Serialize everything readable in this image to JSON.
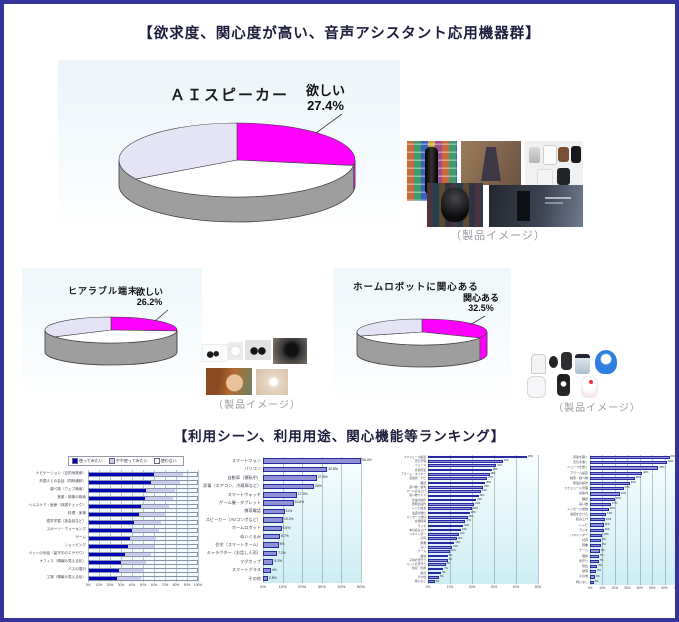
{
  "frame": {
    "border_color": "#333399"
  },
  "section1_title": "【欲求度、関心度が高い、音声アシスタント応用機器群】",
  "section2_title": "【利用シーン、利用用途、関心機能等ランキング】",
  "captions": {
    "speakers": "（製品イメージ）",
    "hearables": "（製品イメージ）",
    "robots": "（製品イメージ）"
  },
  "chart_data": [
    {
      "id": "ai-speaker-pie",
      "type": "pie",
      "title": "ＡＩスピーカー",
      "annotation": {
        "line1": "欲しい",
        "line2": "27.4%"
      },
      "slices": [
        {
          "label": "欲しい",
          "value": 27.4,
          "color": "#ff00ff",
          "side": true
        },
        {
          "label": "",
          "value": 39.0,
          "color": "#ffffff"
        },
        {
          "label": "",
          "value": 33.6,
          "color": "#e4e4f6"
        }
      ]
    },
    {
      "id": "hearable-pie",
      "type": "pie",
      "title": "ヒアラブル端末",
      "annotation": {
        "line1": "欲しい",
        "line2": "26.2%"
      },
      "slices": [
        {
          "label": "欲しい",
          "value": 26.2,
          "color": "#ff00ff",
          "side": true
        },
        {
          "label": "",
          "value": 40.0,
          "color": "#ffffff"
        },
        {
          "label": "",
          "value": 33.8,
          "color": "#e4e4f6"
        }
      ]
    },
    {
      "id": "home-robot-pie",
      "type": "pie",
      "title": "ホームロボットに関心ある",
      "annotation": {
        "line1": "関心ある",
        "line2": "32.5%"
      },
      "slices": [
        {
          "label": "関心ある",
          "value": 32.5,
          "color": "#ff00ff",
          "side": true
        },
        {
          "label": "",
          "value": 37.5,
          "color": "#ffffff"
        },
        {
          "label": "",
          "value": 30.0,
          "color": "#e4e4f6"
        }
      ]
    },
    {
      "id": "usage-scene-ranking",
      "type": "bar",
      "orientation": "horizontal",
      "stacked": true,
      "legend": [
        "使ってみたい",
        "やや使ってみたい",
        "使わない"
      ],
      "legend_colors": [
        "#0202b8",
        "#ccccf0",
        "#ffffff"
      ],
      "xlim": [
        0,
        100
      ],
      "x_ticks": [
        "0%",
        "10%",
        "20%",
        "30%",
        "40%",
        "50%",
        "60%",
        "70%",
        "80%",
        "90%",
        "100%"
      ],
      "categories": [
        "ナビゲーション（目的地検索）",
        "外国人との会話（同時通訳）",
        "調べ物（ウェブ検索）",
        "音楽・映像の検索",
        "ヘルスケア・医療（体調チェック）",
        "料理・家事",
        "語学学習（英会話など）",
        "スポーツ・ウォーキング",
        "ゲーム",
        "ショッピング",
        "ペットの世話（留守中のエサやり）",
        "オフィス（情報の見える化）",
        "バスの運行",
        "工場（情報の見える化）"
      ],
      "series": [
        {
          "name": "使ってみたい",
          "values": [
            60,
            57,
            53,
            52,
            48,
            46,
            42,
            40,
            38,
            36,
            33,
            30,
            28,
            26
          ]
        },
        {
          "name": "やや使ってみたい",
          "values": [
            27,
            27,
            27,
            26,
            26,
            25,
            25,
            25,
            24,
            24,
            24,
            23,
            23,
            22
          ]
        },
        {
          "name": "使わない",
          "values": [
            13,
            16,
            20,
            22,
            26,
            29,
            33,
            35,
            38,
            40,
            43,
            47,
            49,
            52
          ]
        }
      ]
    },
    {
      "id": "device-usage-ranking",
      "type": "bar",
      "orientation": "horizontal",
      "bar_color": "#9191d6",
      "bar_border": "#2929a3",
      "xlim": [
        0,
        50
      ],
      "x_ticks": [
        "0%",
        "10%",
        "20%",
        "30%",
        "40%",
        "50%"
      ],
      "categories": [
        "スマートフォン",
        "パソコン",
        "自動車（運転中）",
        "家電（エアコン、冷蔵庫など）",
        "スマートウォッチ",
        "ゲーム機・タブレット",
        "携帯電話",
        "スピーカー（AVコンポなど）",
        "ホームロボット",
        "ぬいぐるみ",
        "住宅（スマートホーム）",
        "キャラクター（お話し人形）",
        "マグカップ",
        "スマートグラス",
        "その他"
      ],
      "values": [
        50.4,
        32.8,
        27.5,
        26.0,
        17.3,
        15.6,
        11.0,
        10.2,
        9.5,
        8.7,
        8.0,
        7.2,
        5.3,
        4.0,
        2.5
      ]
    },
    {
      "id": "function-interest-ranking",
      "type": "bar",
      "orientation": "horizontal",
      "bar_color": "#9191d6",
      "bar_border": "#2929a3",
      "xlim": [
        0,
        50
      ],
      "x_ticks": [
        "0%",
        "10%",
        "20%",
        "30%",
        "40%",
        "50%"
      ],
      "categories": [
        "スケジュール確認",
        "天気予報",
        "ニュース",
        "音楽再生",
        "アラーム・タイマー",
        "道案内・ナビ",
        "翻訳",
        "調べ物・検索",
        "メール読み上げ",
        "買い物リスト",
        "家電の操作",
        "照明の操作",
        "レシピ検索",
        "電話の発信",
        "メッセージ送信",
        "交通情報",
        "ラジオ",
        "本の読み上げ",
        "リマインダー",
        "計算",
        "辞書",
        "占い",
        "ゲーム",
        "雑談",
        "子供の見守り",
        "ペットの見守り",
        "防犯・監視",
        "録音",
        "その他",
        "特になし"
      ],
      "values": [
        45,
        34,
        31,
        29,
        28,
        27,
        26,
        25,
        24,
        23,
        22,
        21,
        20,
        19,
        18,
        17,
        16,
        15,
        14,
        13,
        12,
        11,
        10,
        9,
        9,
        8,
        7,
        6,
        5,
        3
      ]
    },
    {
      "id": "use-purpose-ranking",
      "type": "bar",
      "orientation": "horizontal",
      "bar_color": "#9191d6",
      "bar_border": "#2929a3",
      "xlim": [
        0,
        70
      ],
      "x_ticks": [
        "0%",
        "10%",
        "20%",
        "30%",
        "40%",
        "50%",
        "60%",
        "70%"
      ],
      "categories": [
        "音楽を聴く",
        "天気を聞く",
        "ニュースを聞く",
        "アラーム設定",
        "検索・調べ物",
        "家電の操作",
        "スケジュール管理",
        "道案内",
        "翻訳",
        "買い物",
        "メッセージ送信",
        "電話をかける",
        "読み上げ",
        "レシピ",
        "ラジオ",
        "リマインダー",
        "計算",
        "辞書",
        "ゲーム",
        "雑談",
        "見守り",
        "防犯",
        "録音",
        "その他",
        "特になし"
      ],
      "values": [
        64,
        62,
        55,
        42,
        36,
        32,
        27,
        24,
        20,
        17,
        15,
        13,
        12,
        11,
        11,
        10,
        9,
        9,
        8,
        7,
        7,
        6,
        5,
        4,
        3
      ]
    }
  ]
}
